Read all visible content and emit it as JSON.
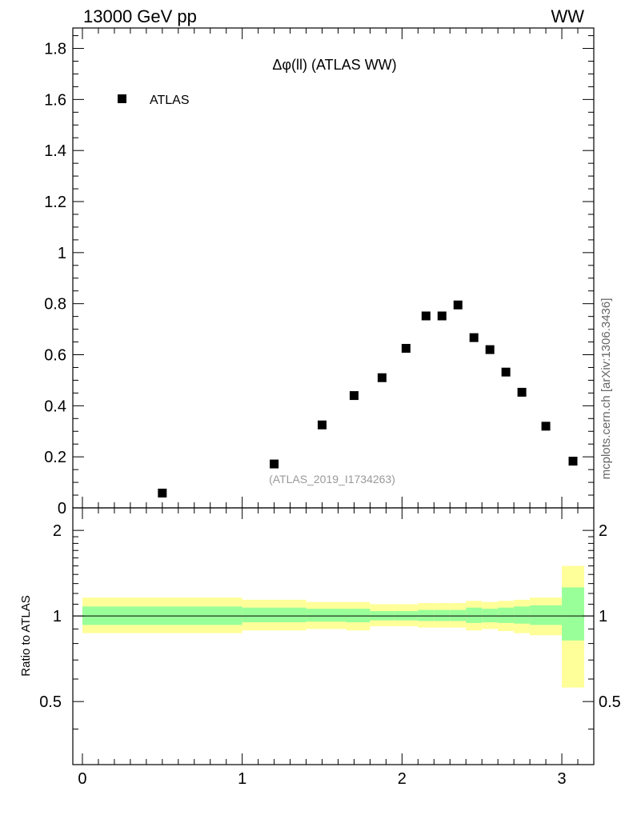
{
  "header": {
    "left": "13000 GeV pp",
    "right": "WW"
  },
  "side_label": "mcplots.cern.ch [arXiv:1306.3436]",
  "watermark": "(ATLAS_2019_I1734263)",
  "chart_data": [
    {
      "type": "scatter",
      "title": "Δφ(ll) (ATLAS WW)",
      "xlim": [
        -0.06,
        3.2
      ],
      "ylim": [
        0,
        1.88
      ],
      "yticks": [
        0,
        0.2,
        0.4,
        0.6,
        0.8,
        1,
        1.2,
        1.4,
        1.6,
        1.8
      ],
      "ytick_labels": [
        "0",
        "0.2",
        "0.4",
        "0.6",
        "0.8",
        "1",
        "1.2",
        "1.4",
        "1.6",
        "1.8"
      ],
      "legend": {
        "placement": "top-left",
        "entries": [
          "ATLAS"
        ]
      },
      "series": [
        {
          "name": "ATLAS",
          "color": "#000000",
          "x": [
            0.5,
            1.2,
            1.5,
            1.7,
            1.875,
            2.025,
            2.15,
            2.25,
            2.35,
            2.45,
            2.55,
            2.65,
            2.75,
            2.9,
            3.07
          ],
          "y": [
            0.058,
            0.172,
            0.325,
            0.44,
            0.51,
            0.625,
            0.752,
            0.752,
            0.795,
            0.667,
            0.62,
            0.532,
            0.453,
            0.32,
            0.183
          ]
        }
      ]
    },
    {
      "type": "area",
      "ylabel": "Ratio to ATLAS",
      "xlim": [
        -0.06,
        3.2
      ],
      "ylim": [
        0.3,
        2.4
      ],
      "xticks": [
        0,
        1,
        2,
        3
      ],
      "xtick_labels": [
        "0",
        "1",
        "2",
        "3"
      ],
      "yticks": [
        0.5,
        1,
        2
      ],
      "ytick_labels": [
        "0.5",
        "1",
        "2"
      ],
      "reference_line": 1,
      "colors": {
        "inner_band": "#99ff99",
        "outer_band": "#ffff99"
      },
      "bins": [
        {
          "lo": 0.0,
          "hi": 1.0,
          "inner": [
            0.93,
            1.08
          ],
          "outer": [
            0.87,
            1.16
          ]
        },
        {
          "lo": 1.0,
          "hi": 1.4,
          "inner": [
            0.95,
            1.07
          ],
          "outer": [
            0.89,
            1.14
          ]
        },
        {
          "lo": 1.4,
          "hi": 1.65,
          "inner": [
            0.955,
            1.06
          ],
          "outer": [
            0.9,
            1.12
          ]
        },
        {
          "lo": 1.65,
          "hi": 1.8,
          "inner": [
            0.95,
            1.06
          ],
          "outer": [
            0.89,
            1.12
          ]
        },
        {
          "lo": 1.8,
          "hi": 1.95,
          "inner": [
            0.965,
            1.04
          ],
          "outer": [
            0.92,
            1.1
          ]
        },
        {
          "lo": 1.95,
          "hi": 2.1,
          "inner": [
            0.965,
            1.04
          ],
          "outer": [
            0.92,
            1.1
          ]
        },
        {
          "lo": 2.1,
          "hi": 2.2,
          "inner": [
            0.96,
            1.05
          ],
          "outer": [
            0.91,
            1.11
          ]
        },
        {
          "lo": 2.2,
          "hi": 2.3,
          "inner": [
            0.96,
            1.05
          ],
          "outer": [
            0.91,
            1.11
          ]
        },
        {
          "lo": 2.3,
          "hi": 2.4,
          "inner": [
            0.96,
            1.05
          ],
          "outer": [
            0.91,
            1.11
          ]
        },
        {
          "lo": 2.4,
          "hi": 2.5,
          "inner": [
            0.945,
            1.07
          ],
          "outer": [
            0.89,
            1.13
          ]
        },
        {
          "lo": 2.5,
          "hi": 2.6,
          "inner": [
            0.95,
            1.06
          ],
          "outer": [
            0.9,
            1.12
          ]
        },
        {
          "lo": 2.6,
          "hi": 2.7,
          "inner": [
            0.945,
            1.07
          ],
          "outer": [
            0.885,
            1.13
          ]
        },
        {
          "lo": 2.7,
          "hi": 2.8,
          "inner": [
            0.94,
            1.08
          ],
          "outer": [
            0.87,
            1.14
          ]
        },
        {
          "lo": 2.8,
          "hi": 3.0,
          "inner": [
            0.93,
            1.09
          ],
          "outer": [
            0.855,
            1.16
          ]
        },
        {
          "lo": 3.0,
          "hi": 3.14,
          "inner": [
            0.82,
            1.26
          ],
          "outer": [
            0.56,
            1.5
          ]
        }
      ]
    }
  ]
}
